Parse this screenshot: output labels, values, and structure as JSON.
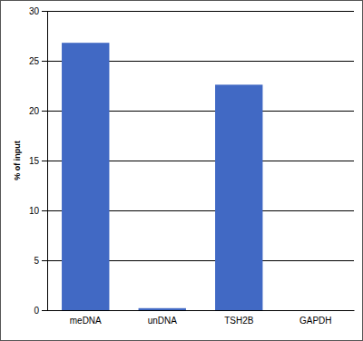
{
  "chart_data": {
    "type": "bar",
    "y_label": "% of input",
    "categories": [
      "meDNA",
      "unDNA",
      "TSH2B",
      "GAPDH"
    ],
    "values": [
      26.8,
      0.2,
      22.6,
      0
    ],
    "color": "#4169c4",
    "ylim": [
      0,
      30
    ],
    "yticks": [
      0,
      5,
      10,
      15,
      20,
      25,
      30
    ],
    "grid": true
  }
}
